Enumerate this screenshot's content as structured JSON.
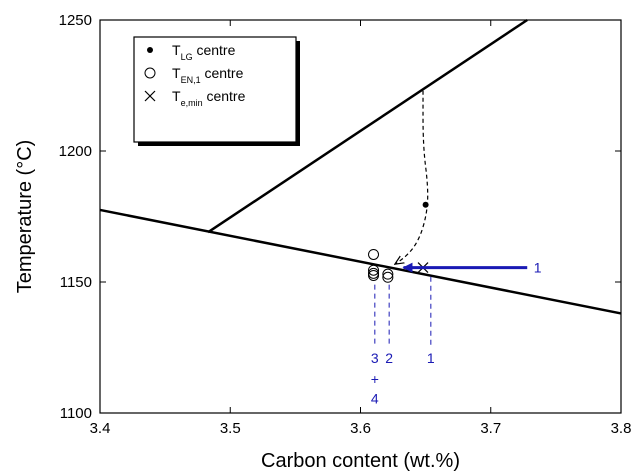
{
  "colors": {
    "annotation": "#1a1ab4",
    "line": "#000000"
  },
  "chart_data": {
    "type": "scatter",
    "title": "",
    "xlabel": "Carbon content (wt.%)",
    "ylabel": "Temperature (°C)",
    "xlim": [
      3.4,
      3.8
    ],
    "ylim": [
      1100,
      1250
    ],
    "xticks": [
      3.4,
      3.5,
      3.6,
      3.7,
      3.8
    ],
    "xtick_labels": [
      "3.4",
      "3.5",
      "3.6",
      "3.7",
      "3.8"
    ],
    "yticks": [
      1100,
      1150,
      1200,
      1250
    ],
    "ytick_labels": [
      "1100",
      "1150",
      "1200",
      "1250"
    ],
    "grid": false,
    "legend_position": "top-left",
    "legend": [
      {
        "marker": "filled-dot",
        "main": "T",
        "sub": "LG",
        "suffix": " centre"
      },
      {
        "marker": "open-circle",
        "main": "T",
        "sub": "EN,1",
        "suffix": " centre"
      },
      {
        "marker": "cross",
        "main": "T",
        "sub": "e,min",
        "suffix": " centre"
      }
    ],
    "lines": [
      {
        "name": "liquidus",
        "x": [
          3.483,
          3.728
        ],
        "y": [
          1169,
          1250
        ]
      },
      {
        "name": "eutectic",
        "x": [
          3.4,
          3.8
        ],
        "y": [
          1177.5,
          1138
        ]
      }
    ],
    "series": [
      {
        "marker": "filled-dot",
        "x": [
          3.65
        ],
        "y": [
          1179.5
        ]
      },
      {
        "marker": "open-circle",
        "x": [
          3.61,
          3.61,
          3.61,
          3.61,
          3.621,
          3.621
        ],
        "y": [
          1160.5,
          1154.5,
          1153.3,
          1152.5,
          1153,
          1151.8
        ]
      },
      {
        "marker": "cross",
        "x": [
          3.648
        ],
        "y": [
          1155.5
        ]
      }
    ],
    "dashed_curve": [
      [
        3.648,
        1223
      ],
      [
        3.648,
        1202
      ],
      [
        3.652,
        1186
      ],
      [
        3.651,
        1176
      ],
      [
        3.645,
        1166
      ],
      [
        3.635,
        1159.5
      ],
      [
        3.627,
        1157
      ]
    ],
    "arrow": {
      "from": [
        3.728,
        1155.5
      ],
      "to": [
        3.633,
        1155.5
      ],
      "label": "1",
      "label_at": [
        3.733,
        1155.5
      ]
    },
    "annotations": [
      {
        "text": "3",
        "x": 3.611,
        "y": 1121
      },
      {
        "text": "2",
        "x": 3.622,
        "y": 1121
      },
      {
        "text": "1",
        "x": 3.654,
        "y": 1121
      },
      {
        "text": "+",
        "x": 3.611,
        "y": 1113
      },
      {
        "text": "4",
        "x": 3.611,
        "y": 1105.5
      }
    ],
    "guides": [
      {
        "x": 3.611,
        "y": [
          1149,
          1125
        ]
      },
      {
        "x": 3.622,
        "y": [
          1149,
          1125
        ]
      },
      {
        "x": 3.654,
        "y": [
          1152,
          1125
        ]
      }
    ]
  }
}
